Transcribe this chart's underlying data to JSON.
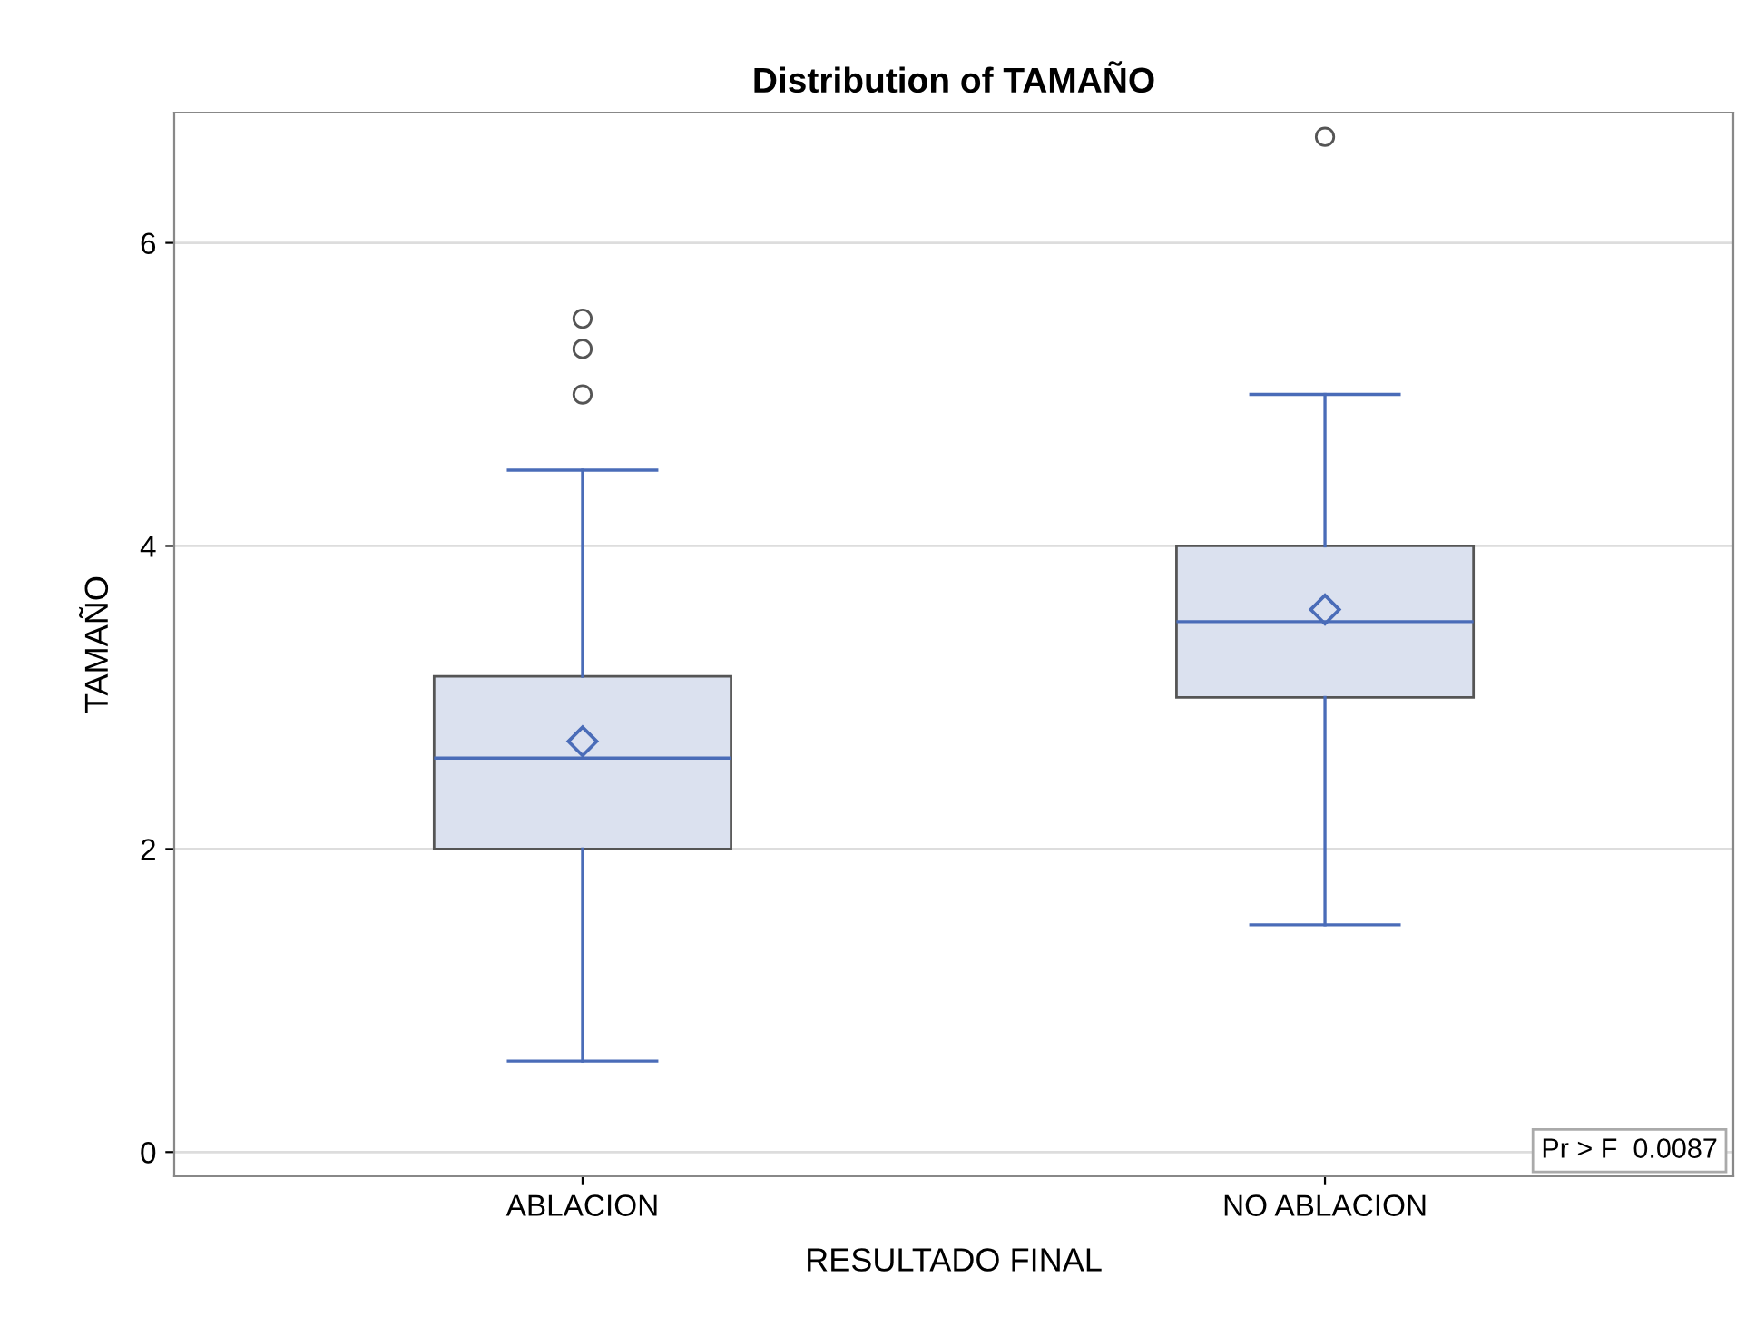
{
  "chart_data": {
    "type": "box",
    "title": "Distribution of TAMAÑO",
    "xlabel": "RESULTADO FINAL",
    "ylabel": "TAMAÑO",
    "categories": [
      "ABLACION",
      "NO ABLACION"
    ],
    "series": [
      {
        "color": "#4a6cb8",
        "colors": [
          "#dbe1ef",
          "#dbe1ef"
        ],
        "boxes": [
          {
            "low": 0.6,
            "q1": 2.0,
            "median": 2.6,
            "q3": 3.14,
            "high": 4.5,
            "mean": 2.71,
            "outliers": [
              5.0,
              5.3,
              5.5
            ]
          },
          {
            "low": 1.5,
            "q1": 3.0,
            "median": 3.5,
            "q3": 4.0,
            "high": 5.0,
            "mean": 3.58,
            "outliers": [
              6.7
            ]
          }
        ]
      }
    ],
    "ylim": [
      -0.16,
      6.86
    ],
    "yticks": [
      0,
      2,
      4,
      6
    ],
    "grid": "y",
    "marker": "diamond",
    "annotations": [
      "Pr > F  0.0087"
    ]
  }
}
